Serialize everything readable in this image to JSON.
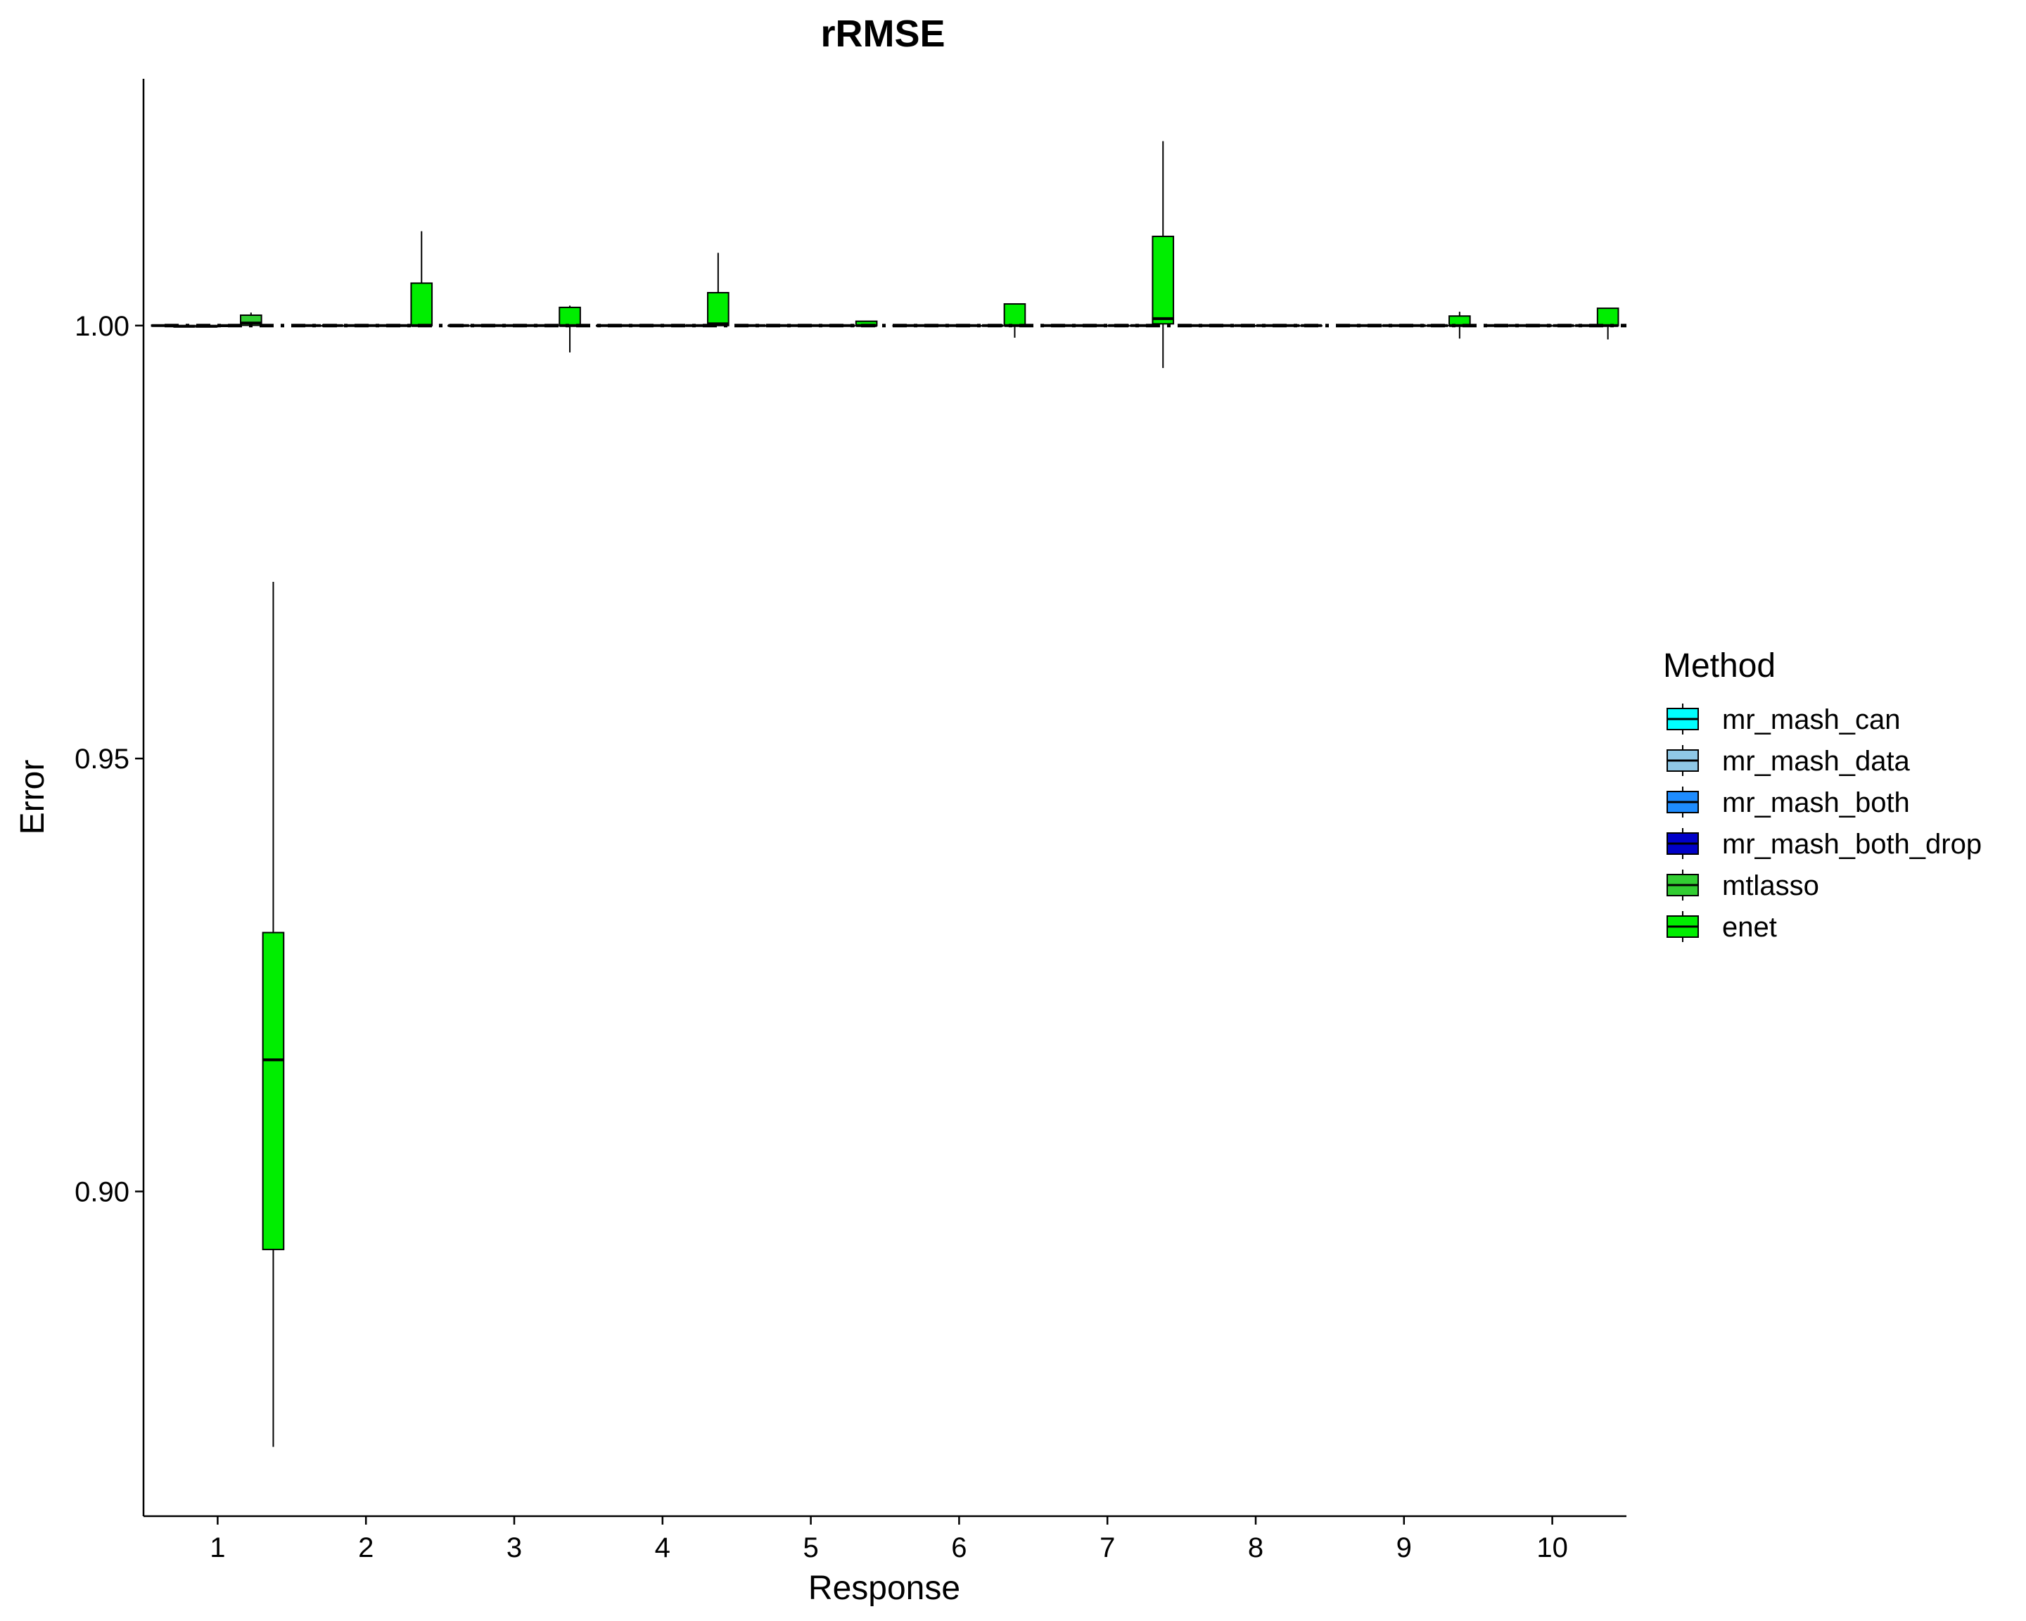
{
  "chart_data": {
    "type": "boxplot",
    "title": "rRMSE",
    "xlabel": "Response",
    "ylabel": "Error",
    "categories": [
      "1",
      "2",
      "3",
      "4",
      "5",
      "6",
      "7",
      "8",
      "9",
      "10"
    ],
    "y_ticks": [
      0.9,
      0.95,
      1.0
    ],
    "y_tick_labels": [
      "0.90",
      "0.95",
      "1.00"
    ],
    "ylim": [
      0.8625,
      1.0285
    ],
    "reference_line": 1.0,
    "legend_title": "Method",
    "legend_position": "right",
    "grid": false,
    "series": [
      {
        "name": "mr_mash_can",
        "color": "#00FFFF",
        "boxes": [
          {
            "min": 0.99995,
            "q1": 0.99995,
            "median": 1.0,
            "q3": 1.00005,
            "max": 1.00008
          },
          {
            "min": 1.0,
            "q1": 1.0,
            "median": 1.0,
            "q3": 1.0,
            "max": 1.0
          },
          {
            "min": 1.0,
            "q1": 1.0,
            "median": 1.0,
            "q3": 1.0,
            "max": 1.0
          },
          {
            "min": 1.0,
            "q1": 1.0,
            "median": 1.0,
            "q3": 1.0,
            "max": 1.0
          },
          {
            "min": 1.0,
            "q1": 1.0,
            "median": 1.0,
            "q3": 1.0,
            "max": 1.0
          },
          {
            "min": 1.0,
            "q1": 1.0,
            "median": 1.0,
            "q3": 1.0,
            "max": 1.0
          },
          {
            "min": 1.0,
            "q1": 1.0,
            "median": 1.0,
            "q3": 1.0,
            "max": 1.0
          },
          {
            "min": 1.0,
            "q1": 1.0,
            "median": 1.0,
            "q3": 1.0,
            "max": 1.0
          },
          {
            "min": 1.0,
            "q1": 1.0,
            "median": 1.0,
            "q3": 1.0,
            "max": 1.0
          },
          {
            "min": 1.0,
            "q1": 1.0,
            "median": 1.0,
            "q3": 1.0,
            "max": 1.0
          }
        ]
      },
      {
        "name": "mr_mash_data",
        "color": "#8FC8E6",
        "boxes": [
          {
            "min": 0.99985,
            "q1": 0.99985,
            "median": 0.99992,
            "q3": 1.0,
            "max": 1.00005
          },
          {
            "min": 1.0,
            "q1": 1.0,
            "median": 1.0,
            "q3": 1.0,
            "max": 1.0
          },
          {
            "min": 1.0,
            "q1": 1.0,
            "median": 1.0,
            "q3": 1.0,
            "max": 1.0
          },
          {
            "min": 1.0,
            "q1": 1.0,
            "median": 1.0,
            "q3": 1.0,
            "max": 1.0
          },
          {
            "min": 1.0,
            "q1": 1.0,
            "median": 1.0,
            "q3": 1.0,
            "max": 1.0
          },
          {
            "min": 1.0,
            "q1": 1.0,
            "median": 1.0,
            "q3": 1.0,
            "max": 1.0
          },
          {
            "min": 1.0,
            "q1": 1.0,
            "median": 1.0,
            "q3": 1.0,
            "max": 1.0
          },
          {
            "min": 1.0,
            "q1": 1.0,
            "median": 1.0,
            "q3": 1.0,
            "max": 1.0
          },
          {
            "min": 1.0,
            "q1": 1.0,
            "median": 1.0,
            "q3": 1.0,
            "max": 1.0
          },
          {
            "min": 1.0,
            "q1": 1.0,
            "median": 1.0,
            "q3": 1.0,
            "max": 1.0
          }
        ]
      },
      {
        "name": "mr_mash_both",
        "color": "#1E8CFF",
        "boxes": [
          {
            "min": 0.99985,
            "q1": 0.99985,
            "median": 0.99992,
            "q3": 1.0,
            "max": 1.00005
          },
          {
            "min": 1.0,
            "q1": 1.0,
            "median": 1.0,
            "q3": 1.0,
            "max": 1.0
          },
          {
            "min": 1.0,
            "q1": 1.0,
            "median": 1.0,
            "q3": 1.0,
            "max": 1.0
          },
          {
            "min": 1.0,
            "q1": 1.0,
            "median": 1.0,
            "q3": 1.0,
            "max": 1.0
          },
          {
            "min": 1.0,
            "q1": 1.0,
            "median": 1.0,
            "q3": 1.0,
            "max": 1.0
          },
          {
            "min": 1.0,
            "q1": 1.0,
            "median": 1.0,
            "q3": 1.0,
            "max": 1.0
          },
          {
            "min": 1.0,
            "q1": 1.0,
            "median": 1.0,
            "q3": 1.0,
            "max": 1.0
          },
          {
            "min": 1.0,
            "q1": 1.0,
            "median": 1.0,
            "q3": 1.0,
            "max": 1.0
          },
          {
            "min": 1.0,
            "q1": 1.0,
            "median": 1.0,
            "q3": 1.0,
            "max": 1.0
          },
          {
            "min": 1.0,
            "q1": 1.0,
            "median": 1.0,
            "q3": 1.0,
            "max": 1.0
          }
        ]
      },
      {
        "name": "mr_mash_both_drop",
        "color": "#0000C8",
        "boxes": [
          {
            "min": 0.9999,
            "q1": 0.9999,
            "median": 1.0,
            "q3": 1.0,
            "max": 1.0
          },
          {
            "min": 1.0,
            "q1": 1.0,
            "median": 1.0,
            "q3": 1.0,
            "max": 1.0
          },
          {
            "min": 1.0,
            "q1": 1.0,
            "median": 1.0,
            "q3": 1.0,
            "max": 1.0
          },
          {
            "min": 1.0,
            "q1": 1.0,
            "median": 1.0,
            "q3": 1.0,
            "max": 1.0
          },
          {
            "min": 1.0,
            "q1": 1.0,
            "median": 1.0,
            "q3": 1.0,
            "max": 1.0
          },
          {
            "min": 1.0,
            "q1": 1.0,
            "median": 1.0,
            "q3": 1.0,
            "max": 1.0
          },
          {
            "min": 1.0,
            "q1": 1.0,
            "median": 1.0,
            "q3": 1.0,
            "max": 1.0
          },
          {
            "min": 1.0,
            "q1": 1.0,
            "median": 1.0,
            "q3": 1.0,
            "max": 1.0
          },
          {
            "min": 1.0,
            "q1": 1.0,
            "median": 1.0,
            "q3": 1.0,
            "max": 1.0
          },
          {
            "min": 1.0,
            "q1": 1.0,
            "median": 1.0,
            "q3": 1.0,
            "max": 1.0
          }
        ]
      },
      {
        "name": "mtlasso",
        "color": "#32CD32",
        "boxes": [
          {
            "min": 1.0,
            "q1": 1.00003,
            "median": 1.0003,
            "q3": 1.0012,
            "max": 1.0015
          },
          {
            "min": 1.0,
            "q1": 1.0,
            "median": 1.0,
            "q3": 1.0,
            "max": 1.0
          },
          {
            "min": 1.0,
            "q1": 1.0,
            "median": 1.0,
            "q3": 1.0,
            "max": 1.0
          },
          {
            "min": 1.0,
            "q1": 1.0,
            "median": 1.0,
            "q3": 1.0,
            "max": 1.0
          },
          {
            "min": 1.0,
            "q1": 1.0,
            "median": 1.0,
            "q3": 1.0,
            "max": 1.0
          },
          {
            "min": 1.0,
            "q1": 1.0,
            "median": 1.0,
            "q3": 1.0,
            "max": 1.0
          },
          {
            "min": 1.0,
            "q1": 1.0,
            "median": 1.0,
            "q3": 1.0,
            "max": 1.0
          },
          {
            "min": 1.0,
            "q1": 1.0,
            "median": 1.0,
            "q3": 1.0,
            "max": 1.0
          },
          {
            "min": 1.0,
            "q1": 1.0,
            "median": 1.0,
            "q3": 1.0,
            "max": 1.0
          },
          {
            "min": 1.0,
            "q1": 1.0,
            "median": 1.0,
            "q3": 1.0,
            "max": 1.0
          }
        ]
      },
      {
        "name": "enet",
        "color": "#00EE00",
        "boxes": [
          {
            "min": 0.8705,
            "q1": 0.8933,
            "median": 0.9152,
            "q3": 0.9299,
            "max": 0.9704
          },
          {
            "min": 0.9999,
            "q1": 1.0,
            "median": 1.0,
            "q3": 1.0049,
            "max": 1.0109
          },
          {
            "min": 0.9969,
            "q1": 1.0,
            "median": 1.0,
            "q3": 1.0021,
            "max": 1.0023
          },
          {
            "min": 1.0,
            "q1": 1.0,
            "median": 1.0002,
            "q3": 1.0038,
            "max": 1.0084
          },
          {
            "min": 1.0,
            "q1": 1.0,
            "median": 1.0,
            "q3": 1.0005,
            "max": 1.0005
          },
          {
            "min": 0.9986,
            "q1": 1.0,
            "median": 1.0,
            "q3": 1.0025,
            "max": 1.0025
          },
          {
            "min": 0.9951,
            "q1": 1.0002,
            "median": 1.0008,
            "q3": 1.0103,
            "max": 1.0213
          },
          {
            "min": 1.0,
            "q1": 1.0,
            "median": 1.0,
            "q3": 1.0,
            "max": 1.0
          },
          {
            "min": 0.9985,
            "q1": 1.0,
            "median": 1.0,
            "q3": 1.0011,
            "max": 1.0016
          },
          {
            "min": 0.9984,
            "q1": 1.0,
            "median": 1.0,
            "q3": 1.002,
            "max": 1.002
          }
        ]
      }
    ]
  }
}
